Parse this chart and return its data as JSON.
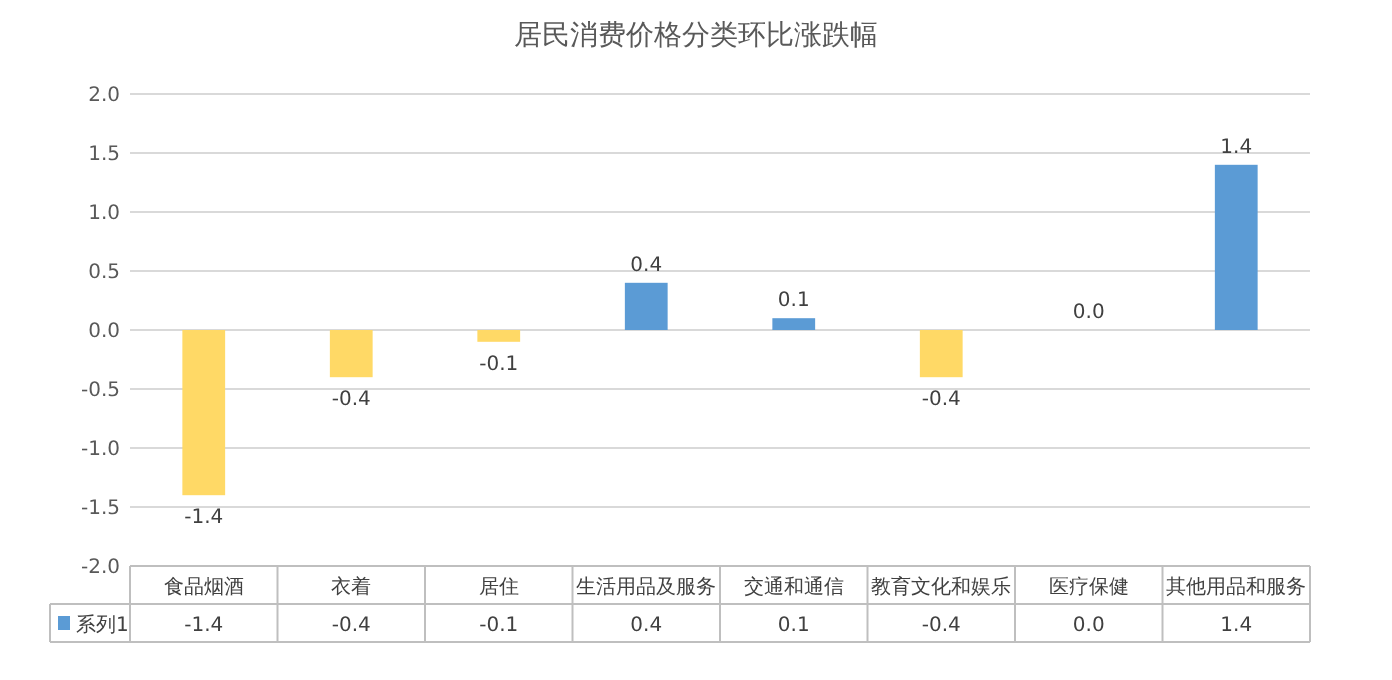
{
  "chart_data": {
    "type": "bar",
    "title": "居民消费价格分类环比涨跌幅",
    "categories": [
      "食品烟酒",
      "衣着",
      "居住",
      "生活用品及服务",
      "交通和通信",
      "教育文化和娱乐",
      "医疗保健",
      "其他用品和服务"
    ],
    "series": [
      {
        "name": "系列1",
        "color": "#5b9bd5",
        "values": [
          -1.4,
          -0.4,
          -0.1,
          0.4,
          0.1,
          -0.4,
          0.0,
          1.4
        ],
        "colors": [
          "#ffd966",
          "#ffd966",
          "#ffd966",
          "#5b9bd5",
          "#5b9bd5",
          "#ffd966",
          "#5b9bd5",
          "#5b9bd5"
        ],
        "value_labels": [
          "-1.4",
          "-0.4",
          "-0.1",
          "0.4",
          "0.1",
          "-0.4",
          "0.0",
          "1.4"
        ]
      }
    ],
    "ylim": [
      -2,
      2
    ],
    "yticks": [
      {
        "value": -2,
        "label": "-2.0"
      },
      {
        "value": -1.5,
        "label": "-1.5"
      },
      {
        "value": -1,
        "label": "-1.0"
      },
      {
        "value": -0.5,
        "label": "-0.5"
      },
      {
        "value": 0,
        "label": "0.0"
      },
      {
        "value": 0.5,
        "label": "0.5"
      },
      {
        "value": 1,
        "label": "1.0"
      },
      {
        "value": 1.5,
        "label": "1.5"
      },
      {
        "value": 2,
        "label": "2.0"
      }
    ],
    "grid": "y",
    "legend": "bottom"
  }
}
